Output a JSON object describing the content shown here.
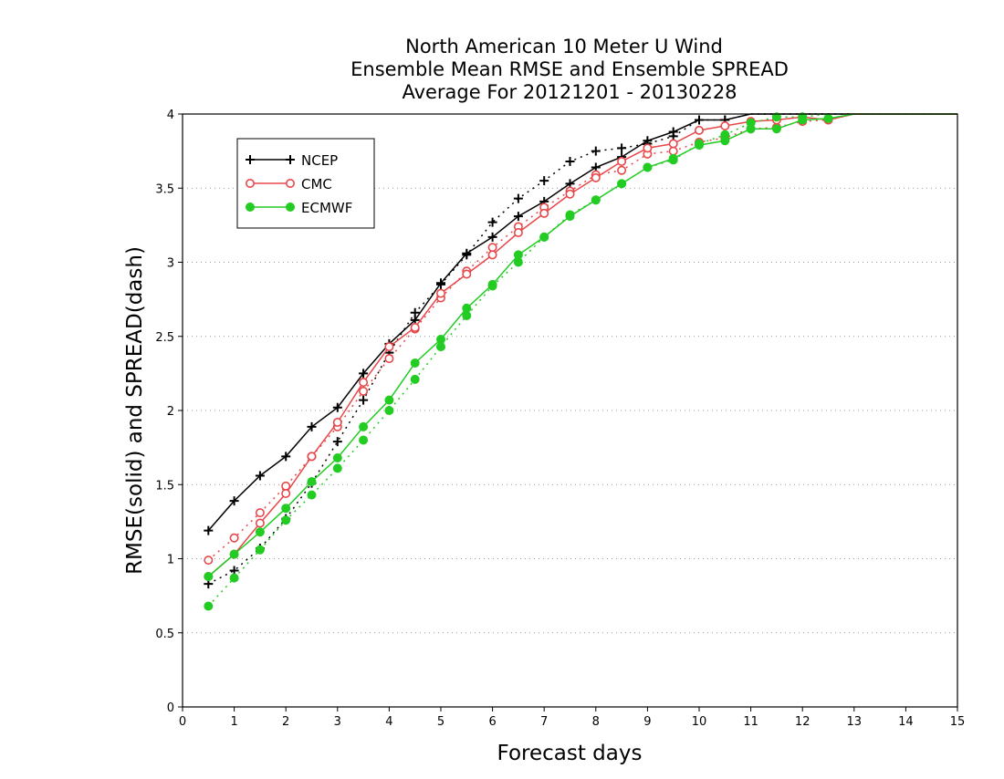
{
  "chart_data": {
    "type": "line",
    "title": [
      "North American 10 Meter U Wind",
      "Ensemble Mean RMSE and Ensemble SPREAD",
      "Average For 20121201 - 20130228"
    ],
    "xlabel": "Forecast days",
    "ylabel": "RMSE(solid) and SPREAD(dash)",
    "xlim": [
      0,
      15
    ],
    "ylim": [
      0,
      4
    ],
    "xticks": [
      0,
      1,
      2,
      3,
      4,
      5,
      6,
      7,
      8,
      9,
      10,
      11,
      12,
      13,
      14,
      15
    ],
    "yticks": [
      0,
      0.5,
      1,
      1.5,
      2,
      2.5,
      3,
      3.5,
      4
    ],
    "ytick_labels": [
      "0",
      "0.5",
      "1",
      "1.5",
      "2",
      "2.5",
      "3",
      "3.5",
      "4"
    ],
    "grid": "horizontal dotted",
    "legend_position": "top-left",
    "x": [
      0.5,
      1,
      1.5,
      2,
      2.5,
      3,
      3.5,
      4,
      4.5,
      5,
      5.5,
      6,
      6.5,
      7,
      7.5,
      8,
      8.5,
      9,
      9.5,
      10,
      10.5,
      11,
      11.5,
      12,
      12.5,
      13,
      13.5,
      14,
      14.5,
      15
    ],
    "series": [
      {
        "name": "NCEP",
        "color": "#000000",
        "marker": "plus",
        "rmse": [
          1.19,
          1.39,
          1.56,
          1.69,
          1.89,
          2.02,
          2.25,
          2.45,
          2.61,
          2.86,
          3.06,
          3.17,
          3.31,
          3.41,
          3.53,
          3.64,
          3.71,
          3.82,
          3.88,
          3.96,
          3.96,
          4.0,
          4.0,
          4.0,
          4.0,
          4.0,
          4.0,
          4.0,
          4.0,
          4.0
        ],
        "spread": [
          0.83,
          0.92,
          1.07,
          1.27,
          1.51,
          1.79,
          2.07,
          2.39,
          2.66,
          2.85,
          3.05,
          3.27,
          3.43,
          3.55,
          3.68,
          3.75,
          3.77,
          3.8,
          3.85,
          3.96,
          3.96,
          4.0,
          4.0,
          4.0,
          4.0,
          4.0,
          4.0,
          4.0,
          4.0,
          4.0
        ]
      },
      {
        "name": "CMC",
        "color": "#e8474a",
        "marker": "open-circle",
        "rmse": [
          0.88,
          1.03,
          1.24,
          1.44,
          1.69,
          1.92,
          2.19,
          2.43,
          2.56,
          2.79,
          2.92,
          3.05,
          3.2,
          3.33,
          3.46,
          3.57,
          3.68,
          3.77,
          3.8,
          3.89,
          3.92,
          3.95,
          3.96,
          3.98,
          3.96,
          4.0,
          4.0,
          4.0,
          4.0,
          4.0
        ],
        "spread": [
          0.99,
          1.14,
          1.31,
          1.49,
          1.69,
          1.89,
          2.13,
          2.35,
          2.55,
          2.76,
          2.94,
          3.1,
          3.24,
          3.37,
          3.48,
          3.59,
          3.62,
          3.73,
          3.75,
          3.81,
          3.84,
          3.9,
          3.91,
          3.95,
          3.96,
          4.0,
          4.0,
          4.0,
          4.0,
          4.0
        ]
      },
      {
        "name": "ECMWF",
        "color": "#22cc22",
        "marker": "filled-circle",
        "rmse": [
          0.88,
          1.03,
          1.18,
          1.34,
          1.52,
          1.68,
          1.89,
          2.07,
          2.32,
          2.48,
          2.69,
          2.85,
          3.05,
          3.17,
          3.31,
          3.42,
          3.53,
          3.64,
          3.7,
          3.79,
          3.82,
          3.9,
          3.9,
          3.96,
          3.97,
          4.0,
          4.0,
          4.0,
          4.0,
          4.0
        ],
        "spread": [
          0.68,
          0.87,
          1.06,
          1.26,
          1.43,
          1.61,
          1.8,
          2.0,
          2.21,
          2.43,
          2.64,
          2.84,
          3.0,
          3.17,
          3.32,
          3.42,
          3.53,
          3.64,
          3.69,
          3.8,
          3.86,
          3.94,
          3.98,
          3.98,
          4.0,
          4.0,
          4.0,
          4.0,
          4.0,
          4.0
        ]
      }
    ]
  }
}
